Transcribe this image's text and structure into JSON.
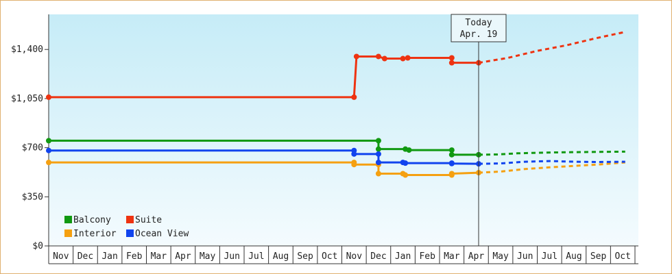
{
  "chart_data": {
    "type": "line",
    "title": "",
    "xlabel": "",
    "ylabel": "",
    "ylim": [
      0,
      1650
    ],
    "yticks": [
      {
        "value": 0,
        "label": "$0"
      },
      {
        "value": 350,
        "label": "$350"
      },
      {
        "value": 700,
        "label": "$700"
      },
      {
        "value": 1050,
        "label": "$1,050"
      },
      {
        "value": 1400,
        "label": "$1,400"
      }
    ],
    "months": [
      "Nov",
      "Dec",
      "Jan",
      "Feb",
      "Mar",
      "Apr",
      "May",
      "Jun",
      "Jul",
      "Aug",
      "Sep",
      "Oct",
      "Nov",
      "Dec",
      "Jan",
      "Feb",
      "Mar",
      "Apr",
      "May",
      "Jun",
      "Jul",
      "Aug",
      "Sep",
      "Oct"
    ],
    "today": {
      "line1": "Today",
      "line2": "Apr. 19",
      "x": 17.6
    },
    "grid": false,
    "legend_position": "bottom-left",
    "series": [
      {
        "name": "Balcony",
        "color": "#119911",
        "points": [
          [
            0,
            750
          ],
          [
            13.5,
            750
          ],
          [
            13.5,
            690
          ],
          [
            14.6,
            690
          ],
          [
            14.75,
            683
          ],
          [
            16.5,
            683
          ],
          [
            16.5,
            650
          ],
          [
            17.6,
            650
          ]
        ],
        "markers": [
          [
            0,
            750
          ],
          [
            13.5,
            750
          ],
          [
            13.5,
            690
          ],
          [
            14.6,
            690
          ],
          [
            14.75,
            683
          ],
          [
            16.5,
            683
          ],
          [
            16.5,
            650
          ],
          [
            17.6,
            650
          ]
        ],
        "forecast": [
          [
            17.6,
            650
          ],
          [
            18.4,
            652
          ],
          [
            19.2,
            660
          ],
          [
            20.3,
            665
          ],
          [
            21.4,
            668
          ],
          [
            22.5,
            670
          ],
          [
            23.6,
            672
          ]
        ]
      },
      {
        "name": "Suite",
        "color": "#ee3311",
        "points": [
          [
            0,
            1060
          ],
          [
            12.5,
            1060
          ],
          [
            12.6,
            1350
          ],
          [
            13.5,
            1350
          ],
          [
            13.75,
            1335
          ],
          [
            14.5,
            1335
          ],
          [
            14.7,
            1340
          ],
          [
            16.5,
            1340
          ],
          [
            16.5,
            1305
          ],
          [
            17.6,
            1305
          ]
        ],
        "markers": [
          [
            0,
            1060
          ],
          [
            12.5,
            1060
          ],
          [
            12.6,
            1350
          ],
          [
            13.5,
            1350
          ],
          [
            13.75,
            1335
          ],
          [
            14.5,
            1335
          ],
          [
            14.7,
            1340
          ],
          [
            16.5,
            1340
          ],
          [
            16.5,
            1305
          ],
          [
            17.6,
            1305
          ]
        ],
        "forecast": [
          [
            17.6,
            1305
          ],
          [
            18.8,
            1340
          ],
          [
            20.0,
            1390
          ],
          [
            21.2,
            1430
          ],
          [
            22.4,
            1480
          ],
          [
            23.6,
            1525
          ]
        ]
      },
      {
        "name": "Interior",
        "color": "#f5a011",
        "points": [
          [
            0,
            595
          ],
          [
            12.5,
            595
          ],
          [
            12.5,
            580
          ],
          [
            13.5,
            580
          ],
          [
            13.5,
            515
          ],
          [
            14.5,
            515
          ],
          [
            14.6,
            505
          ],
          [
            16.5,
            505
          ],
          [
            16.5,
            515
          ],
          [
            17.6,
            522
          ]
        ],
        "markers": [
          [
            0,
            595
          ],
          [
            12.5,
            595
          ],
          [
            12.5,
            580
          ],
          [
            13.5,
            580
          ],
          [
            13.5,
            515
          ],
          [
            14.5,
            515
          ],
          [
            14.6,
            505
          ],
          [
            16.5,
            505
          ],
          [
            16.5,
            515
          ],
          [
            17.6,
            522
          ]
        ],
        "forecast": [
          [
            17.6,
            522
          ],
          [
            18.5,
            530
          ],
          [
            19.5,
            548
          ],
          [
            20.5,
            560
          ],
          [
            21.5,
            570
          ],
          [
            22.5,
            580
          ],
          [
            23.6,
            595
          ]
        ]
      },
      {
        "name": "Ocean View",
        "color": "#1144ee",
        "points": [
          [
            0,
            680
          ],
          [
            12.5,
            680
          ],
          [
            12.5,
            655
          ],
          [
            13.5,
            655
          ],
          [
            13.5,
            595
          ],
          [
            14.5,
            595
          ],
          [
            14.6,
            590
          ],
          [
            16.5,
            590
          ],
          [
            16.5,
            587
          ],
          [
            17.6,
            585
          ]
        ],
        "markers": [
          [
            0,
            680
          ],
          [
            12.5,
            680
          ],
          [
            12.5,
            655
          ],
          [
            13.5,
            655
          ],
          [
            13.5,
            595
          ],
          [
            14.5,
            595
          ],
          [
            14.6,
            590
          ],
          [
            16.5,
            590
          ],
          [
            16.5,
            587
          ],
          [
            17.6,
            585
          ]
        ],
        "forecast": [
          [
            17.6,
            585
          ],
          [
            18.5,
            588
          ],
          [
            19.5,
            600
          ],
          [
            20.5,
            605
          ],
          [
            21.5,
            600
          ],
          [
            22.5,
            598
          ],
          [
            23.6,
            600
          ]
        ]
      }
    ]
  }
}
